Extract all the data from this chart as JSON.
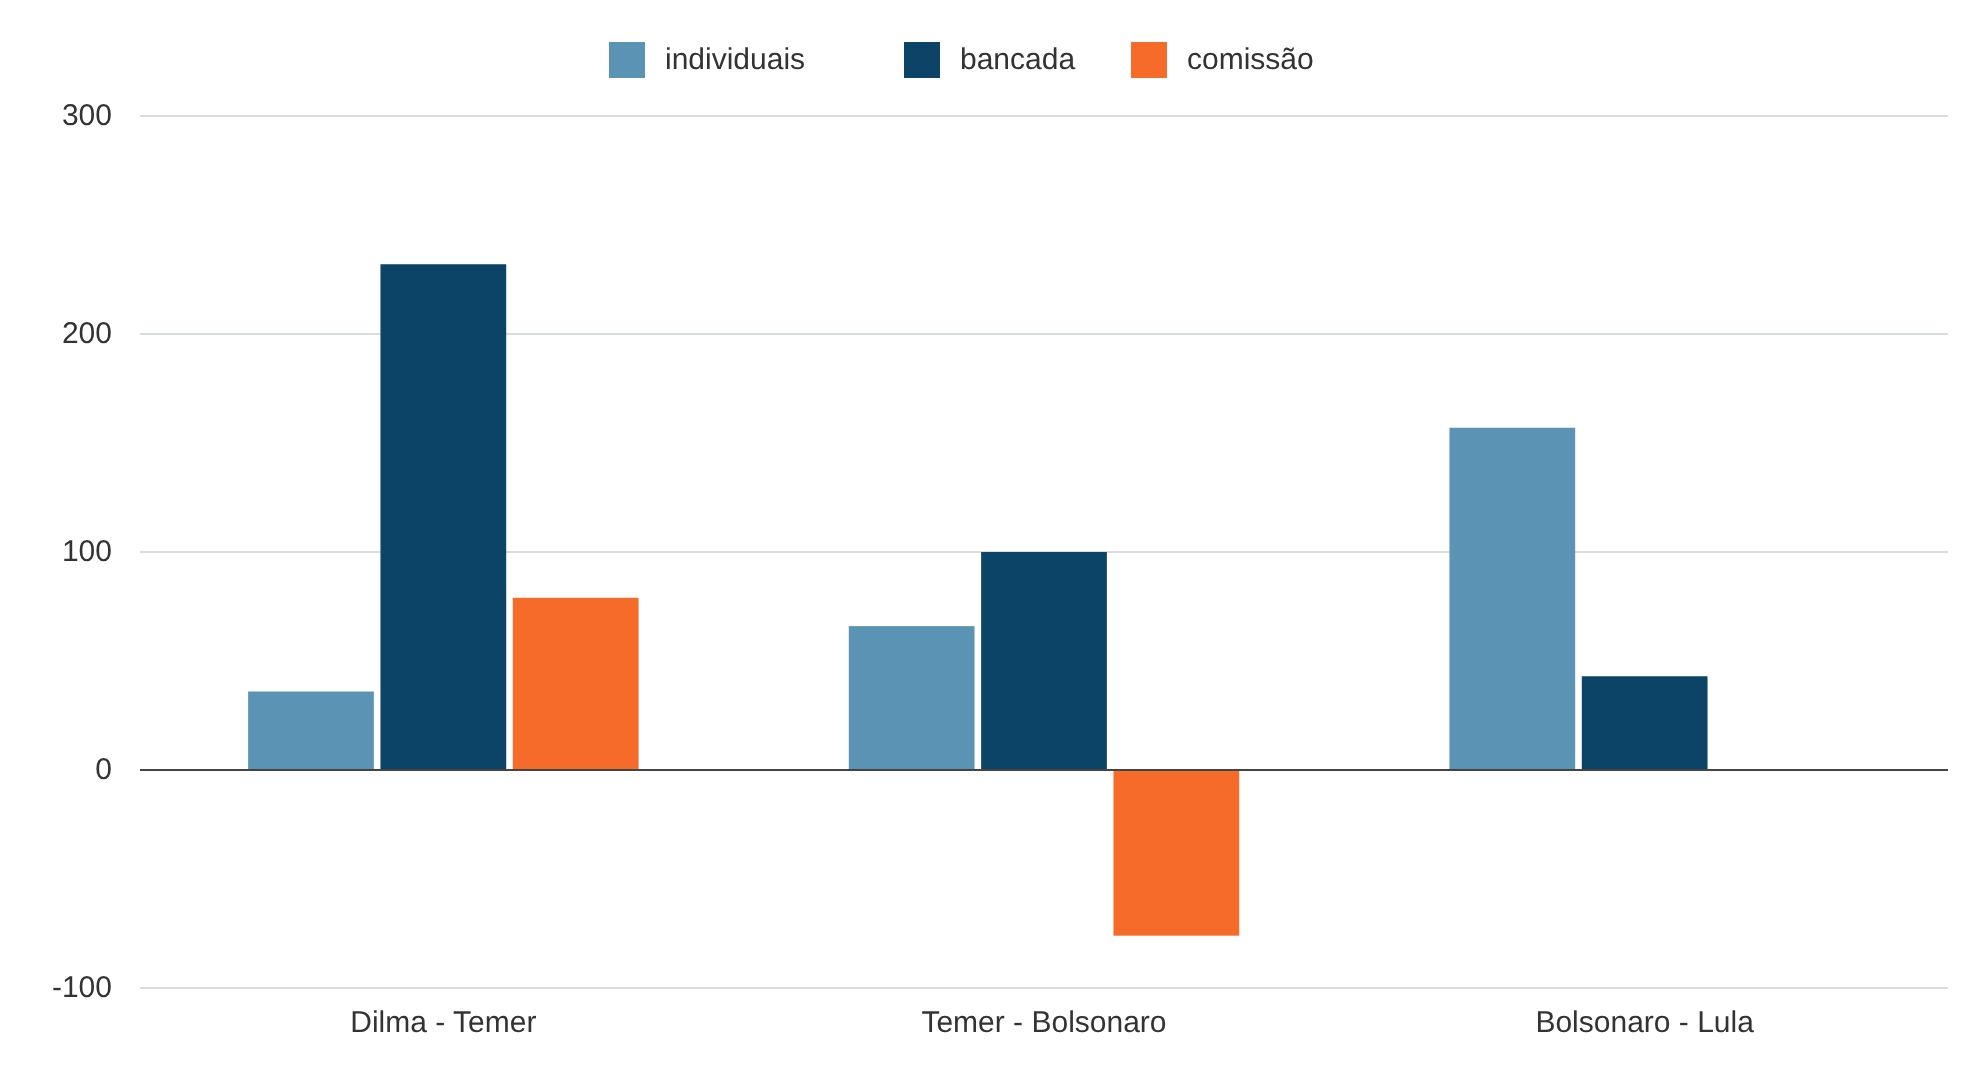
{
  "chart_data": {
    "type": "bar",
    "categories": [
      "Dilma - Temer",
      "Temer - Bolsonaro",
      "Bolsonaro - Lula"
    ],
    "series": [
      {
        "name": "individuais",
        "color": "#5b93b5",
        "values": [
          36,
          66,
          157
        ]
      },
      {
        "name": "bancada",
        "color": "#0b4466",
        "values": [
          232,
          100,
          43
        ]
      },
      {
        "name": "comissão",
        "color": "#f76b2a",
        "values": [
          79,
          -76,
          0
        ]
      }
    ],
    "ylim": [
      -100,
      300
    ],
    "yticks": [
      -100,
      0,
      100,
      200,
      300
    ],
    "grid": "y",
    "legend": "top"
  }
}
